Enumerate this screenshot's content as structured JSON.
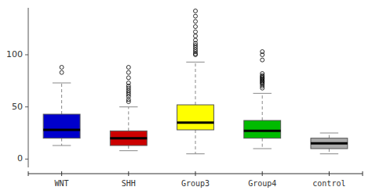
{
  "chart_data": {
    "type": "box",
    "categories": [
      "WNT",
      "SHH",
      "Group3",
      "Group4",
      "control"
    ],
    "colors": [
      "#0000cc",
      "#cc0000",
      "#ffff00",
      "#00bb00",
      "#aaaaaa"
    ],
    "med": [
      28,
      20,
      35,
      27,
      15
    ],
    "q1": [
      20,
      13,
      28,
      20,
      10
    ],
    "q3": [
      43,
      27,
      52,
      37,
      20
    ],
    "whislo": [
      13,
      8,
      5,
      10,
      5
    ],
    "whishi": [
      73,
      50,
      93,
      63,
      25
    ],
    "fliers": [
      [
        83,
        88
      ],
      [
        55,
        57,
        60,
        62,
        64,
        66,
        68,
        70,
        73,
        78,
        83,
        88
      ],
      [
        100,
        101,
        103,
        105,
        107,
        109,
        111,
        114,
        118,
        122,
        127,
        132,
        137,
        142
      ],
      [
        68,
        70,
        72,
        73,
        74,
        75,
        76,
        77,
        78,
        79,
        80,
        82,
        95,
        100,
        103
      ],
      []
    ],
    "ylim": [
      -8,
      145
    ],
    "yticks": [
      0,
      50,
      100
    ]
  }
}
